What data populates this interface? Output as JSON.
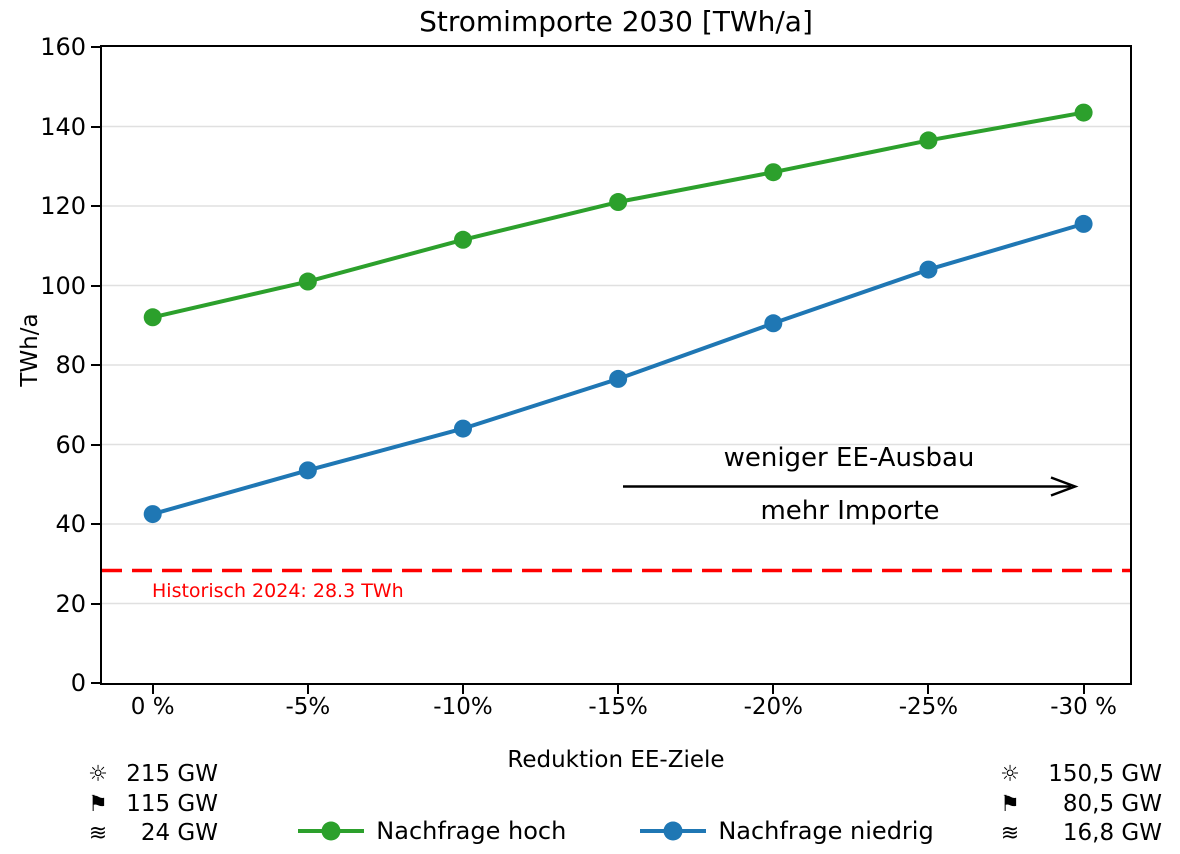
{
  "chart_data": {
    "type": "line",
    "title": "Stromimporte 2030 [TWh/a]",
    "xlabel": "Reduktion EE-Ziele",
    "ylabel": "TWh/a",
    "categories": [
      "0 %",
      "-5%",
      "-10%",
      "-15%",
      "-20%",
      "-25%",
      "-30 %"
    ],
    "x_values_percent": [
      0,
      -5,
      -10,
      -15,
      -20,
      -25,
      -30
    ],
    "ylim": [
      0,
      160
    ],
    "yticks": [
      0,
      20,
      40,
      60,
      80,
      100,
      120,
      140,
      160
    ],
    "grid": "horizontal-only",
    "legend_position": "below-axis",
    "series": [
      {
        "name": "Nachfrage hoch",
        "color": "#2ca02c",
        "marker": "circle",
        "values": [
          92,
          101,
          111.5,
          121,
          128.5,
          136.5,
          143.5
        ]
      },
      {
        "name": "Nachfrage niedrig",
        "color": "#1f77b4",
        "marker": "circle",
        "values": [
          42.5,
          53.5,
          64,
          76.5,
          90.5,
          104,
          115.5
        ]
      }
    ],
    "reference_line": {
      "value": 28.3,
      "label": "Historisch 2024: 28.3 TWh",
      "color": "#ff0000",
      "style": "dashed"
    },
    "annotation": {
      "line1": "weniger EE-Ausbau",
      "line2": "mehr Importe",
      "arrow_direction": "right"
    }
  },
  "icons": {
    "sun": "☼",
    "flag": "⚑",
    "waves": "≋"
  },
  "capacity_left": {
    "rows": [
      {
        "icon": "sun",
        "value": "215 GW"
      },
      {
        "icon": "flag",
        "value": "115 GW"
      },
      {
        "icon": "waves",
        "value": "24 GW"
      }
    ]
  },
  "capacity_right": {
    "rows": [
      {
        "icon": "sun",
        "value": "150,5 GW"
      },
      {
        "icon": "flag",
        "value": "80,5 GW"
      },
      {
        "icon": "waves",
        "value": "16,8 GW"
      }
    ]
  }
}
